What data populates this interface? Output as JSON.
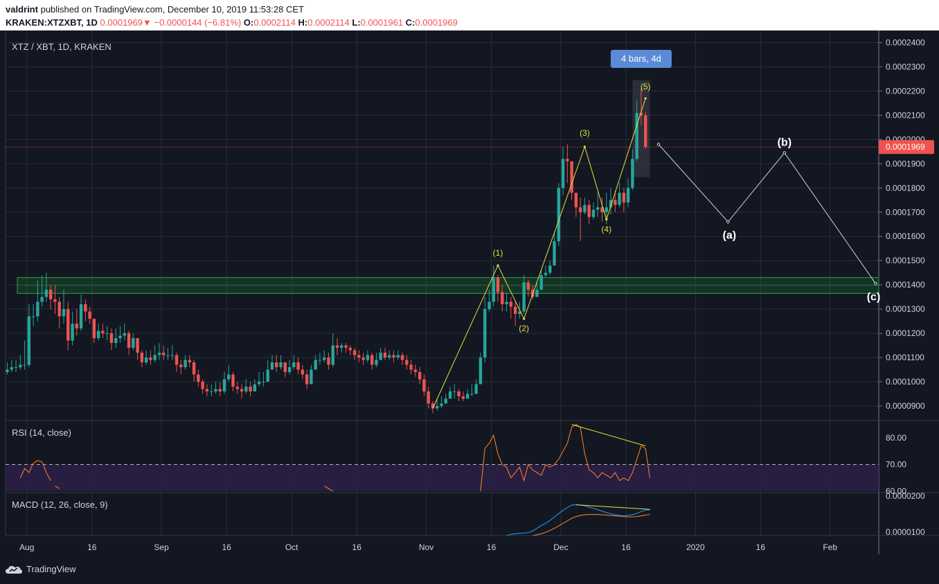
{
  "header": {
    "author": "valdrint",
    "published_text": "published on TradingView.com, December 10, 2019 11:53:28 CET",
    "symbol": "KRAKEN:XTZXBT, 1D",
    "last": "0.0001969",
    "change": "−0.0000144 (−6.81%)",
    "open_label": "O:",
    "open": "0.0002114",
    "high_label": "H:",
    "high": "0.0002114",
    "low_label": "L:",
    "low": "0.0001961",
    "close_label": "C:",
    "close": "0.0001969"
  },
  "colors": {
    "background": "#131722",
    "grid": "#2a2e39",
    "up": "#26a69a",
    "down": "#ef5350",
    "wave": "#e8e23a",
    "rsi_line": "#f57c1f",
    "rsi_band": "#2a1f45",
    "macd_line": "#2196f3",
    "signal_line": "#f57c1f",
    "support_zone": "#1e7f2e",
    "price_label": "#ef5350"
  },
  "chart_data": {
    "type": "candlestick",
    "title": "XTZ / XBT, 1D, KRAKEN",
    "price_axis": [
      "0.0002400",
      "0.0002300",
      "0.0002200",
      "0.0002100",
      "0.0002000",
      "0.0001900",
      "0.0001800",
      "0.0001700",
      "0.0001600",
      "0.0001500",
      "0.0001400",
      "0.0001300",
      "0.0001200",
      "0.0001100",
      "0.0001000",
      "0.0000900"
    ],
    "y_range": [
      8.4e-05,
      0.000245
    ],
    "time_axis": [
      "Aug",
      "16",
      "Sep",
      "16",
      "Oct",
      "16",
      "Nov",
      "16",
      "Dec",
      "16",
      "2020",
      "16",
      "Feb"
    ],
    "current_price_label": "0.0001969",
    "current_price": 0.0001969,
    "closes": [
      0.000105,
      0.000106,
      0.000106,
      0.000107,
      0.000107,
      0.000127,
      0.000127,
      0.000133,
      0.000135,
      0.000138,
      0.000134,
      0.000133,
      0.000127,
      0.00013,
      0.000117,
      0.000124,
      0.000122,
      0.000132,
      0.000129,
      0.000126,
      0.000118,
      0.000121,
      0.00012,
      0.00012,
      0.000116,
      0.000118,
      0.000119,
      0.00012,
      0.000114,
      0.000118,
      0.000112,
      0.000108,
      0.00011,
      0.000109,
      0.000111,
      0.000112,
      0.000111,
      0.000111,
      0.000111,
      0.000107,
      0.000106,
      0.000109,
      0.000108,
      0.000103,
      0.0001,
      9.7e-05,
      9.6e-05,
      9.6e-05,
      9.7e-05,
      9.6e-05,
      0.000101,
      0.000103,
      9.8e-05,
      9.7e-05,
      9.6e-05,
      9.8e-05,
      9.6e-05,
      9.9e-05,
      0.0001,
      0.0001,
      0.000105,
      0.000108,
      0.000106,
      0.000108,
      0.000104,
      0.000106,
      0.000108,
      0.000105,
      0.000103,
      9.9e-05,
      0.000105,
      0.000109,
      0.000109,
      0.00011,
      0.000107,
      0.000115,
      0.000114,
      0.000115,
      0.000114,
      0.000113,
      0.000111,
      0.00011,
      0.000109,
      0.000111,
      0.000107,
      0.000109,
      0.000112,
      0.00011,
      0.000111,
      0.00011,
      0.000111,
      0.000109,
      0.000107,
      0.000105,
      0.000104,
      0.000101,
      9.6e-05,
      9.1e-05,
      8.9e-05,
      9e-05,
      9.1e-05,
      9.3e-05,
      9.6e-05,
      9.6e-05,
      9.4e-05,
      9.3e-05,
      9.5e-05,
      9.5e-05,
      9.9e-05,
      0.00011,
      0.00013,
      0.000133,
      0.000143,
      0.000137,
      0.000132,
      0.000133,
      0.000131,
      0.000128,
      0.000129,
      0.000141,
      0.000138,
      0.000135,
      0.000138,
      0.000144,
      0.000145,
      0.000148,
      0.000158,
      0.00018,
      0.000192,
      0.000191,
      0.000178,
      0.000172,
      0.00017,
      0.000173,
      0.000168,
      0.000171,
      0.000172,
      0.00017,
      0.000172,
      0.000175,
      0.000173,
      0.000178,
      0.000174,
      0.00018,
      0.000192,
      0.000211,
      0.00021,
      0.0001969
    ],
    "highs": [
      0.000108,
      0.000109,
      0.000109,
      0.000111,
      0.000117,
      0.000132,
      0.000132,
      0.000142,
      0.000144,
      0.000145,
      0.00014,
      0.00014,
      0.000135,
      0.000138,
      0.000133,
      0.000129,
      0.00013,
      0.000136,
      0.000134,
      0.000131,
      0.000126,
      0.000124,
      0.000124,
      0.000123,
      0.000122,
      0.000122,
      0.000123,
      0.000124,
      0.000121,
      0.00012,
      0.000117,
      0.000113,
      0.000113,
      0.000113,
      0.000115,
      0.000116,
      0.000115,
      0.000114,
      0.000115,
      0.000112,
      0.000109,
      0.000111,
      0.000111,
      0.000109,
      0.000105,
      0.000101,
      9.9e-05,
      9.9e-05,
      0.0001,
      0.0001,
      0.000104,
      0.000107,
      0.000104,
      0.0001,
      9.9e-05,
      0.000101,
      0.0001,
      0.000101,
      0.000104,
      0.000104,
      0.000109,
      0.000111,
      0.000111,
      0.000111,
      0.000108,
      0.000109,
      0.000111,
      0.00011,
      0.000107,
      0.000105,
      0.000107,
      0.000111,
      0.000112,
      0.000113,
      0.000112,
      0.00012,
      0.000118,
      0.000116,
      0.000116,
      0.000115,
      0.000114,
      0.000113,
      0.000112,
      0.000113,
      0.000112,
      0.000112,
      0.000114,
      0.000114,
      0.000113,
      0.000113,
      0.000113,
      0.000112,
      0.000111,
      0.000109,
      0.000107,
      0.000106,
      0.000103,
      9.8e-05,
      9.2e-05,
      9.3e-05,
      9.4e-05,
      9.5e-05,
      9.8e-05,
      9.9e-05,
      9.7e-05,
      9.6e-05,
      9.7e-05,
      9.9e-05,
      0.000101,
      0.000112,
      0.000135,
      0.000138,
      0.000148,
      0.000144,
      0.00014,
      0.000137,
      0.000135,
      0.000133,
      0.000133,
      0.000144,
      0.000142,
      0.00014,
      0.000141,
      0.000146,
      0.000148,
      0.00015,
      0.000162,
      0.000182,
      0.000197,
      0.000198,
      0.00019,
      0.000178,
      0.000176,
      0.000176,
      0.000175,
      0.000174,
      0.000178,
      0.000176,
      0.000178,
      0.00018,
      0.000179,
      0.000182,
      0.00018,
      0.000184,
      0.000196,
      0.000216,
      0.000221,
      0.0002114
    ],
    "lows": [
      0.000103,
      0.000104,
      0.000104,
      0.000105,
      0.000105,
      0.000106,
      0.000123,
      0.000125,
      0.000131,
      0.000133,
      0.00013,
      0.000128,
      0.000122,
      0.000124,
      0.000113,
      0.000115,
      0.000119,
      0.000121,
      0.000125,
      0.000124,
      0.000116,
      0.000117,
      0.000118,
      0.000117,
      0.000113,
      0.000114,
      0.000116,
      0.000117,
      0.000111,
      0.000113,
      0.000109,
      0.000106,
      0.000107,
      0.000107,
      0.000108,
      0.000109,
      0.000109,
      0.000109,
      0.000109,
      0.000104,
      0.000103,
      0.000105,
      0.000106,
      0.0001,
      9.8e-05,
      9.5e-05,
      9.4e-05,
      9.4e-05,
      9.5e-05,
      9.4e-05,
      9.5e-05,
      0.0001,
      9.6e-05,
      9.5e-05,
      9.3e-05,
      9.5e-05,
      9.4e-05,
      9.6e-05,
      9.8e-05,
      9.8e-05,
      0.0001,
      0.000105,
      0.000104,
      0.000105,
      0.000102,
      0.000103,
      0.000105,
      0.000103,
      0.000101,
      9.7e-05,
      9.9e-05,
      0.000105,
      0.000107,
      0.000108,
      0.000105,
      0.000106,
      0.000111,
      0.000112,
      0.000112,
      0.000111,
      0.000109,
      0.000108,
      0.000107,
      0.000108,
      0.000105,
      0.000106,
      0.000109,
      0.000109,
      0.000109,
      0.000108,
      0.000109,
      0.000107,
      0.000105,
      0.000103,
      0.000102,
      9.9e-05,
      9.4e-05,
      8.9e-05,
      8.7e-05,
      8.8e-05,
      8.9e-05,
      9.1e-05,
      9.3e-05,
      9.3e-05,
      9.2e-05,
      9.2e-05,
      9.3e-05,
      9.4e-05,
      9.5e-05,
      9.9e-05,
      0.000108,
      0.000129,
      0.000131,
      0.000133,
      0.000129,
      0.000129,
      0.000126,
      0.000123,
      0.000126,
      0.000128,
      0.000135,
      0.000134,
      0.000135,
      0.000138,
      0.000143,
      0.000144,
      0.000148,
      0.000156,
      0.000177,
      0.000182,
      0.000175,
      0.000168,
      0.000158,
      0.000169,
      0.000165,
      0.000167,
      0.000168,
      0.000166,
      0.000165,
      0.000169,
      0.00017,
      0.000172,
      0.00017,
      0.000172,
      0.000179,
      0.000191,
      0.000206,
      0.0001961
    ],
    "wave_labels": [
      "(1)",
      "(2)",
      "(3)",
      "(4)",
      "(5)"
    ],
    "wave_points": [
      [
        98,
        8.9e-05
      ],
      [
        113,
        0.000148
      ],
      [
        119,
        0.000126
      ],
      [
        133,
        0.000197
      ],
      [
        138,
        0.000167
      ],
      [
        147,
        0.000217
      ]
    ],
    "abc_labels": [
      "(a)",
      "(b)",
      "(c)"
    ],
    "abc_points": [
      [
        150,
        0.000198
      ],
      [
        166,
        0.000166
      ],
      [
        179,
        0.0001945
      ],
      [
        200,
        0.0001405
      ]
    ],
    "support_zone": [
      0.0001365,
      0.000143
    ],
    "measure_tooltip": "4 bars, 4d",
    "measure_range": [
      144,
      148,
      0.0001845,
      0.0002245
    ],
    "rsi": {
      "title": "RSI (14, close)",
      "axis": [
        "80.00",
        "70.00",
        "60.00"
      ],
      "y_range": [
        59.5,
        86.5
      ],
      "band": [
        60,
        70
      ],
      "segments": [
        {
          "x": [
            3,
            4,
            5,
            6,
            7,
            8,
            9,
            10
          ],
          "y": [
            65,
            68.5,
            67,
            70.5,
            71.5,
            71,
            67,
            64
          ]
        },
        {
          "x": [
            11,
            12
          ],
          "y": [
            62,
            61
          ]
        },
        {
          "x": [
            73,
            74,
            75
          ],
          "y": [
            62,
            61,
            60
          ]
        },
        {
          "x": [
            109,
            110,
            111,
            112,
            113,
            114,
            115,
            116,
            117,
            118,
            119,
            120,
            121,
            122,
            123,
            124,
            125,
            126,
            127,
            128,
            129,
            130,
            131,
            132,
            133,
            134,
            135,
            136,
            137,
            138,
            139,
            140,
            141,
            142,
            143,
            144,
            145,
            146,
            147,
            148
          ],
          "y": [
            60,
            76,
            78,
            81,
            74,
            70,
            69,
            65,
            67,
            69,
            64,
            70,
            68,
            67,
            66,
            70,
            69,
            70,
            72,
            75,
            78,
            84,
            85,
            84,
            74,
            68,
            67,
            65,
            67,
            66,
            65,
            67,
            64,
            65,
            64,
            67,
            72,
            77,
            76,
            65
          ]
        }
      ],
      "divergence": [
        [
          130,
          85
        ],
        [
          147,
          77
        ]
      ]
    },
    "macd": {
      "title": "MACD (12, 26, close, 9)",
      "axis": [
        "0.0000200",
        "0.0000100"
      ],
      "y_range": [
        9e-06,
        2.1e-05
      ],
      "macd_line": {
        "x": [
          115,
          116,
          117,
          118,
          119,
          120,
          121,
          122,
          123,
          124,
          125,
          126,
          127,
          128,
          129,
          130,
          131,
          132,
          133,
          134,
          135,
          136,
          137,
          138,
          139,
          140,
          141,
          142,
          143,
          144,
          145,
          146,
          147,
          148
        ],
        "y": [
          9e-06,
          9.3e-06,
          9.5e-06,
          9.6e-06,
          9.7e-06,
          9.8e-06,
          1.03e-05,
          1.1e-05,
          1.18e-05,
          1.24e-05,
          1.32e-05,
          1.42e-05,
          1.51e-05,
          1.6e-05,
          1.68e-05,
          1.75e-05,
          1.76e-05,
          1.75e-05,
          1.73e-05,
          1.69e-05,
          1.66e-05,
          1.62e-05,
          1.58e-05,
          1.54e-05,
          1.51e-05,
          1.48e-05,
          1.46e-05,
          1.45e-05,
          1.46e-05,
          1.48e-05,
          1.52e-05,
          1.57e-05,
          1.61e-05,
          1.62e-05
        ]
      },
      "signal_line": {
        "x": [
          121,
          122,
          123,
          124,
          125,
          126,
          127,
          128,
          129,
          130,
          131,
          132,
          133,
          134,
          135,
          136,
          137,
          138,
          139,
          140,
          141,
          142,
          143,
          144,
          145,
          146,
          147,
          148
        ],
        "y": [
          9e-06,
          9.2e-06,
          9.5e-06,
          9.9e-06,
          1.04e-05,
          1.1e-05,
          1.17e-05,
          1.24e-05,
          1.31e-05,
          1.38e-05,
          1.43e-05,
          1.46e-05,
          1.48e-05,
          1.49e-05,
          1.49e-05,
          1.49e-05,
          1.48e-05,
          1.47e-05,
          1.46e-05,
          1.45e-05,
          1.44e-05,
          1.43e-05,
          1.42e-05,
          1.42e-05,
          1.43e-05,
          1.45e-05,
          1.47e-05,
          1.49e-05
        ]
      },
      "divergence": [
        [
          131,
          1.76e-05
        ],
        [
          148,
          1.63e-05
        ]
      ]
    }
  },
  "footer": {
    "brand": "TradingView"
  }
}
